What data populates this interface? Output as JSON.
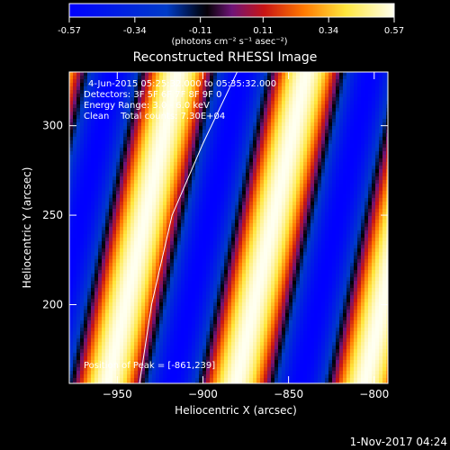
{
  "colorbar": {
    "ticks": [
      "-0.57",
      "-0.34",
      "-0.11",
      "0.11",
      "0.34",
      "0.57"
    ],
    "tick_values": [
      -0.57,
      -0.34,
      -0.11,
      0.11,
      0.34,
      0.57
    ],
    "range": [
      -0.57,
      0.57
    ],
    "units": "(photons cm⁻² s⁻¹ asec⁻²)"
  },
  "chart_data": {
    "type": "heatmap",
    "title": "Reconstructed RHESSI Image",
    "xlabel": "Heliocentric X (arcsec)",
    "ylabel": "Heliocentric Y (arcsec)",
    "xlim": [
      -978,
      -792
    ],
    "ylim": [
      156,
      330
    ],
    "x_ticks": [
      -950,
      -900,
      -850,
      -800
    ],
    "y_ticks": [
      200,
      250,
      300
    ],
    "colormap": "rhessi-blue-white-red-yellow",
    "pattern": {
      "description_note": "",
      "amplitude": 0.57,
      "stripe_slope_x_per_y": 0.235,
      "period_x": 75
    },
    "peak": [
      -861,
      239
    ],
    "limb_line": [
      [
        -937,
        156
      ],
      [
        -930,
        200
      ],
      [
        -918,
        250
      ],
      [
        -900,
        290
      ],
      [
        -880,
        330
      ]
    ],
    "annotations": {
      "time_range": "4-Jun-2015 05:25:32.000 to 05:35:32.000",
      "detectors": "Detectors: 3F 5F 6F 7F 8F 9F 0",
      "energy": "Energy Range: 3.0 - 6.0 keV",
      "clean": "Clean    Total counts: 7.30E+04",
      "peak_label": "Position of Peak = [-861,239]"
    }
  },
  "footer": {
    "date": "1-Nov-2017 04:24"
  },
  "colors": {
    "background": "#000000",
    "text": "#ffffff"
  }
}
